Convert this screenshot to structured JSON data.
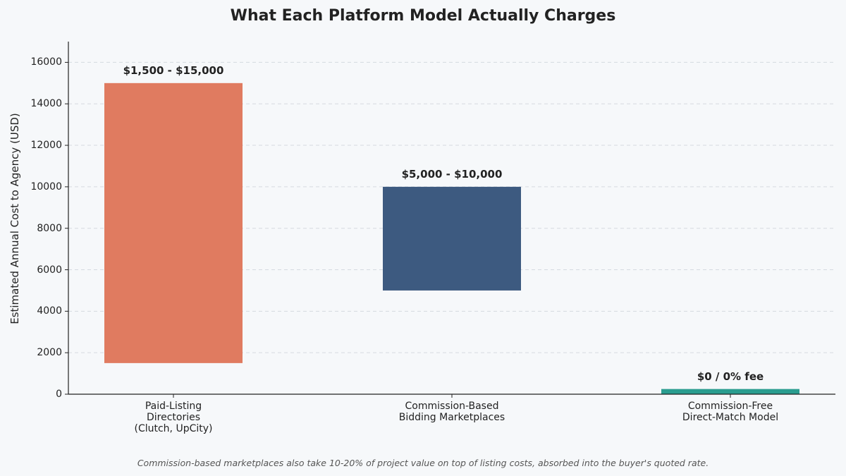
{
  "chart_data": {
    "type": "bar",
    "title": "What Each Platform Model Actually Charges",
    "ylabel": "Estimated Annual Cost to Agency (USD)",
    "xlabel": "",
    "ylim": [
      0,
      17000
    ],
    "yticks": [
      0,
      2000,
      4000,
      6000,
      8000,
      10000,
      12000,
      14000,
      16000
    ],
    "grid": true,
    "categories": [
      "Paid-Listing\nDirectories\n(Clutch, UpCity)",
      "Commission-Based\nBidding Marketplaces",
      "Commission-Free\nDirect-Match Model"
    ],
    "ranges": [
      {
        "low": 1500,
        "high": 15000,
        "label": "$1,500 - $15,000",
        "color": "#e07b60"
      },
      {
        "low": 5000,
        "high": 10000,
        "label": "$5,000 - $10,000",
        "color": "#3d5a80"
      },
      {
        "low": 0,
        "high": 250,
        "label": "$0 / 0% fee",
        "color": "#2a9d8f"
      }
    ],
    "footnote": "Commission-based marketplaces also take 10-20% of project value on top of listing costs, absorbed into the buyer's quoted rate."
  }
}
